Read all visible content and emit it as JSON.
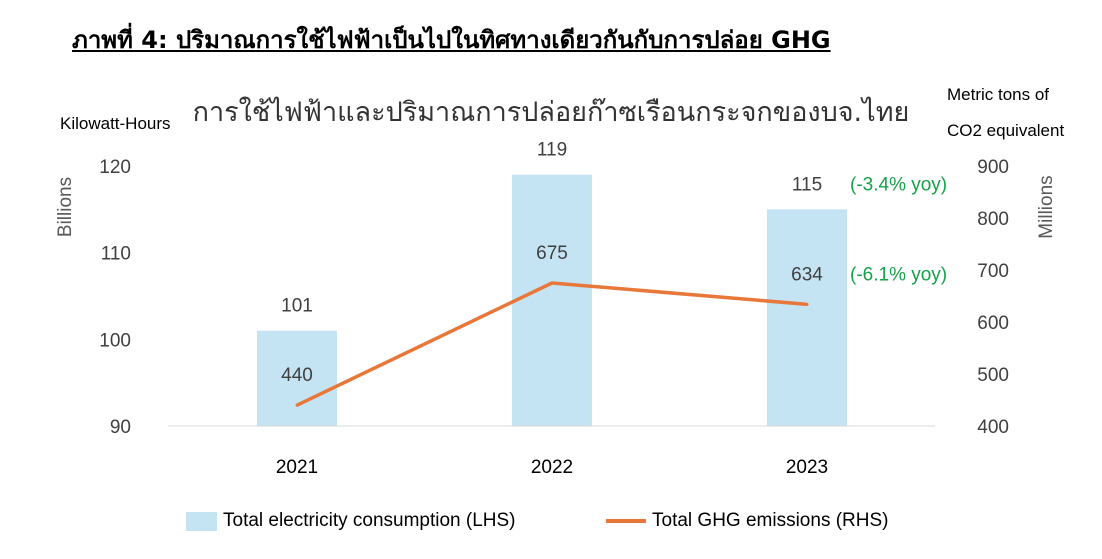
{
  "figure_heading": "ภาพที่ 4: ปริมาณการใช้ไฟฟ้าเป็นไปในทิศทางเดียวกันกับการปล่อย GHG",
  "chart_data": {
    "type": "bar+line",
    "title": "การใช้ไฟฟ้าและปริมาณการปล่อยก๊าซเรือนกระจกของบจ.ไทย",
    "categories": [
      "2021",
      "2022",
      "2023"
    ],
    "left_axis": {
      "unit_label": "Kilowatt-Hours",
      "scale_label": "Billions",
      "range": [
        90,
        120
      ],
      "ticks": [
        "90",
        "100",
        "110",
        "120"
      ]
    },
    "right_axis": {
      "unit_label_line1": "Metric tons of",
      "unit_label_line2": "CO2 equivalent",
      "scale_label": "Millions",
      "range": [
        400,
        900
      ],
      "ticks": [
        "400",
        "500",
        "600",
        "700",
        "800",
        "900"
      ]
    },
    "series": [
      {
        "name": "Total electricity consumption (LHS)",
        "kind": "bar",
        "axis": "left",
        "color": "#c5e4f3",
        "values": [
          101,
          119,
          115
        ],
        "labels": [
          "101",
          "119",
          "115"
        ]
      },
      {
        "name": "Total GHG emissions (RHS)",
        "kind": "line",
        "axis": "right",
        "color": "#e8773a",
        "values": [
          440,
          675,
          634
        ],
        "labels": [
          "440",
          "675",
          "634"
        ]
      }
    ],
    "annotations": [
      {
        "text": "(-3.4% yoy)",
        "color": "#14a34a",
        "applies_to": "bar",
        "category": "2023"
      },
      {
        "text": "(-6.1% yoy)",
        "color": "#14a34a",
        "applies_to": "line",
        "category": "2023"
      }
    ],
    "grid": false,
    "legend_position": "bottom"
  }
}
